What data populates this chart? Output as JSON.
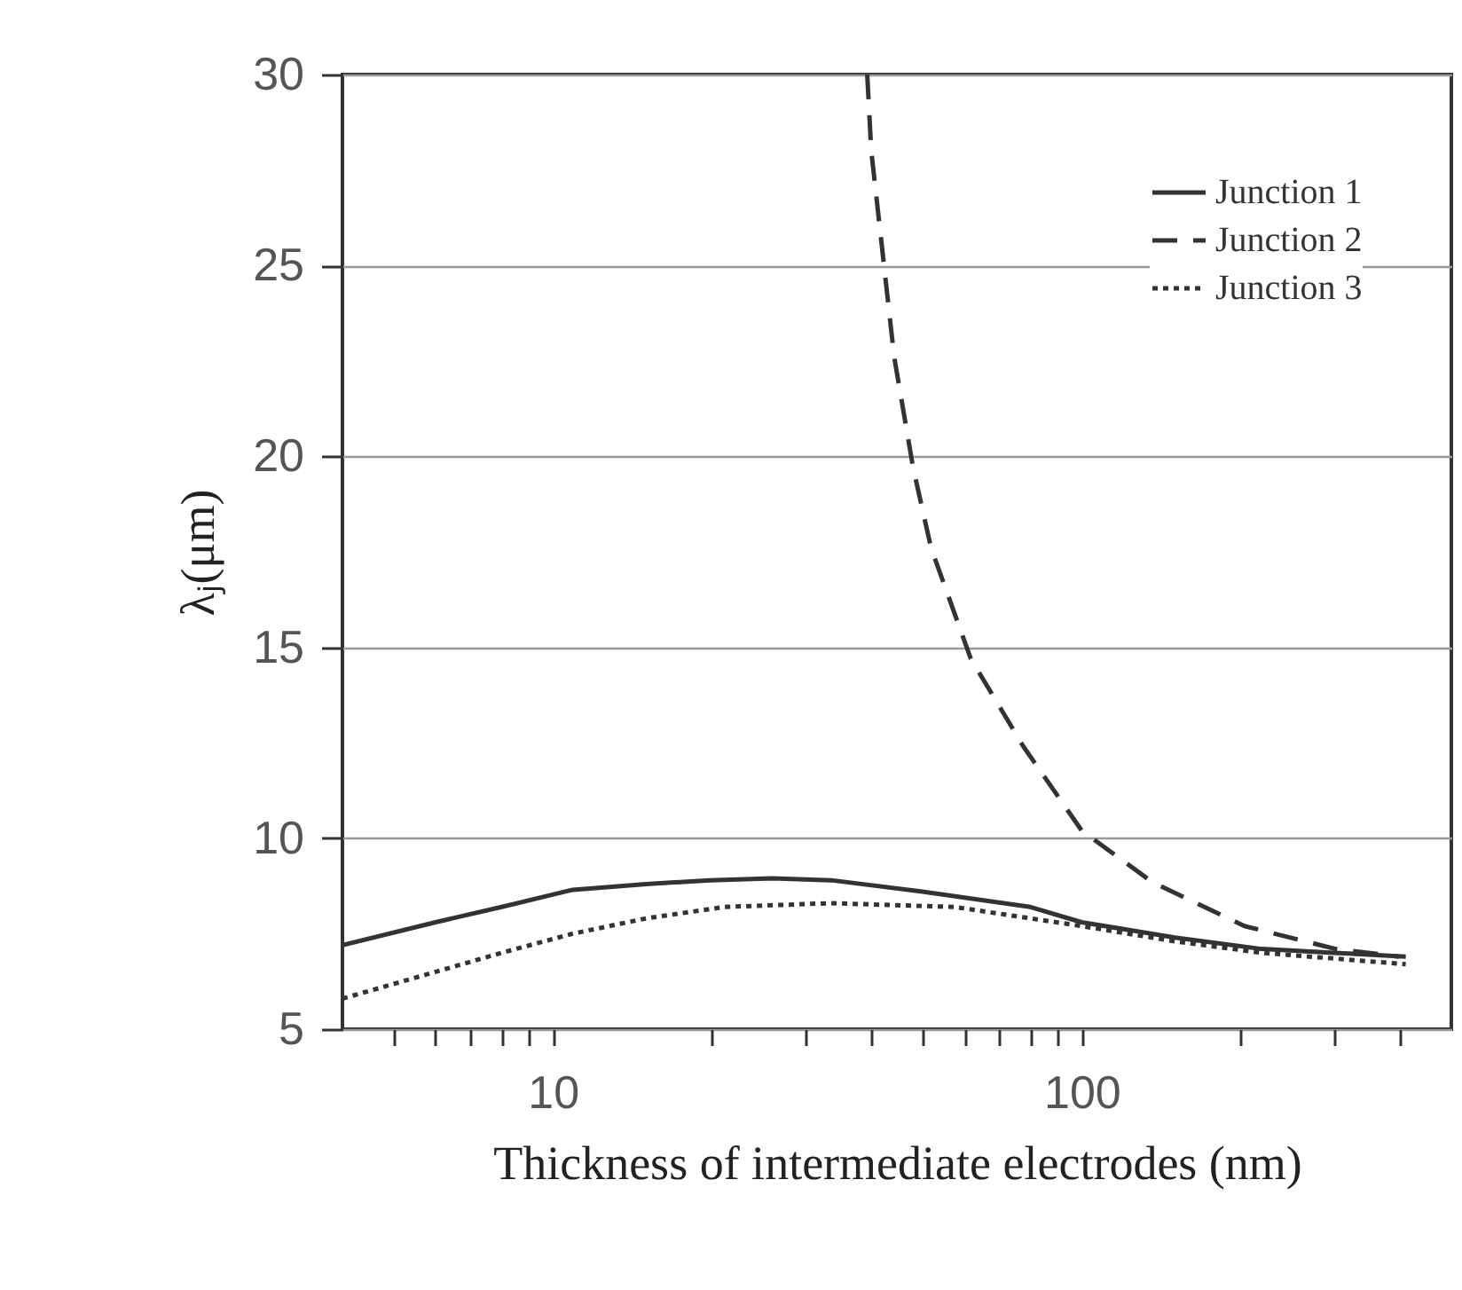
{
  "chart_data": {
    "type": "line",
    "xlabel": "Thickness of intermediate electrodes (nm)",
    "ylabel": "λⱼ(μm)",
    "log": "x",
    "xlim": [
      4,
      500
    ],
    "ylim": [
      5,
      30
    ],
    "xticks": [
      {
        "value": 5,
        "label": null
      },
      {
        "value": 6,
        "label": null
      },
      {
        "value": 7,
        "label": null
      },
      {
        "value": 8,
        "label": null
      },
      {
        "value": 9,
        "label": null
      },
      10,
      {
        "value": 20,
        "label": null
      },
      {
        "value": 30,
        "label": null
      },
      {
        "value": 40,
        "label": null
      },
      {
        "value": 50,
        "label": null
      },
      {
        "value": 60,
        "label": null
      },
      {
        "value": 70,
        "label": null
      },
      {
        "value": 80,
        "label": null
      },
      {
        "value": 90,
        "label": null
      },
      100,
      {
        "value": 200,
        "label": null
      },
      {
        "value": 300,
        "label": null
      },
      {
        "value": 400,
        "label": null
      }
    ],
    "yticks": [
      5,
      10,
      15,
      20,
      25,
      30
    ],
    "grid": "y",
    "legend": "top right",
    "series": [
      {
        "name": "Junction 1",
        "color": "#333333",
        "line_style": "solid",
        "x": [
          4,
          6,
          8,
          10.9,
          15,
          19.8,
          26,
          33.6,
          50,
          80,
          100,
          150,
          219,
          300,
          410
        ],
        "values": [
          7.2,
          7.8,
          8.2,
          8.65,
          8.8,
          8.9,
          8.95,
          8.9,
          8.6,
          8.2,
          7.8,
          7.4,
          7.1,
          7.0,
          6.9
        ]
      },
      {
        "name": "Junction 2",
        "color": "#333333",
        "line_style": "dashed",
        "x": [
          39.3,
          40,
          44.2,
          48,
          51.9,
          61.7,
          77.6,
          100,
          136,
          203,
          302,
          398
        ],
        "values": [
          30,
          28.0,
          22.6,
          19.7,
          17.6,
          14.7,
          12.4,
          10.2,
          8.85,
          7.7,
          7.1,
          6.9
        ]
      },
      {
        "name": "Junction 3",
        "color": "#333333",
        "line_style": "dotted",
        "x": [
          4,
          6,
          8,
          10.9,
          15,
          21.1,
          33.6,
          57.5,
          100,
          150,
          219,
          300,
          410
        ],
        "values": [
          5.8,
          6.5,
          7.0,
          7.5,
          7.9,
          8.2,
          8.3,
          8.2,
          7.7,
          7.3,
          7.0,
          6.85,
          6.7
        ]
      }
    ]
  }
}
